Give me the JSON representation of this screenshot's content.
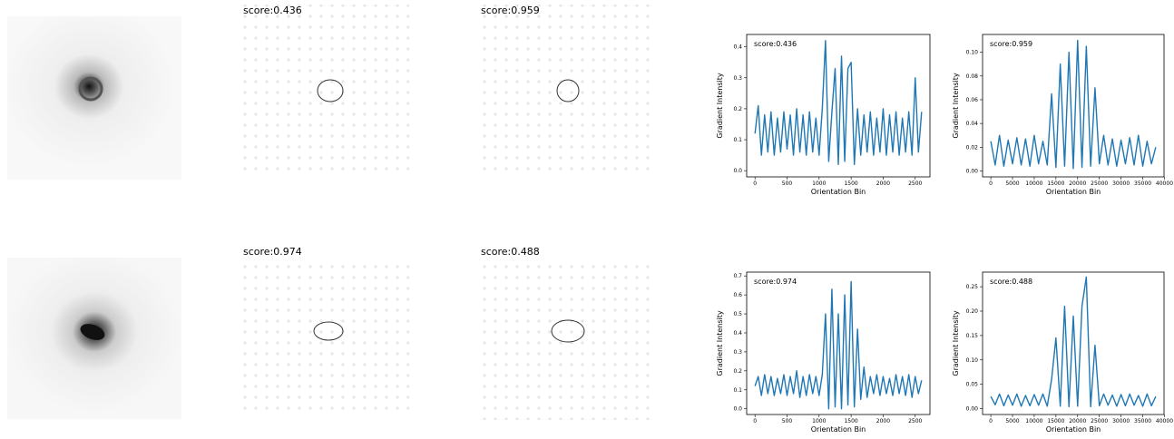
{
  "image_panels": [
    {
      "score_label": "score:0.436"
    },
    {
      "score_label": "score:0.959"
    },
    {
      "score_label": "score:0.974"
    },
    {
      "score_label": "score:0.488"
    }
  ],
  "chart_data": [
    {
      "type": "line",
      "annotation": "score:0.436",
      "xlabel": "Orientation Bin",
      "ylabel": "Gradient Intensity",
      "xlim": [
        -130,
        2730
      ],
      "ylim": [
        -0.02,
        0.44
      ],
      "xticks": [
        0,
        500,
        1000,
        1500,
        2000,
        2500
      ],
      "yticks": [
        {
          "value": 0,
          "label": "0.0"
        },
        0.1,
        0.2,
        0.3,
        0.4
      ],
      "x": [
        0,
        50,
        100,
        150,
        200,
        250,
        300,
        350,
        400,
        450,
        500,
        550,
        600,
        650,
        700,
        750,
        800,
        850,
        900,
        950,
        1000,
        1050,
        1100,
        1150,
        1200,
        1250,
        1300,
        1350,
        1400,
        1450,
        1500,
        1550,
        1600,
        1650,
        1700,
        1750,
        1800,
        1850,
        1900,
        1950,
        2000,
        2050,
        2100,
        2150,
        2200,
        2250,
        2300,
        2350,
        2400,
        2450,
        2500,
        2550,
        2600
      ],
      "series": [
        {
          "color": "#1f77b4",
          "values": [
            0.12,
            0.21,
            0.05,
            0.18,
            0.06,
            0.19,
            0.05,
            0.17,
            0.06,
            0.19,
            0.07,
            0.18,
            0.05,
            0.2,
            0.06,
            0.18,
            0.05,
            0.19,
            0.06,
            0.17,
            0.05,
            0.2,
            0.42,
            0.03,
            0.19,
            0.33,
            0.02,
            0.37,
            0.03,
            0.33,
            0.35,
            0.02,
            0.2,
            0.05,
            0.18,
            0.06,
            0.19,
            0.05,
            0.17,
            0.06,
            0.2,
            0.05,
            0.18,
            0.06,
            0.19,
            0.05,
            0.17,
            0.06,
            0.19,
            0.05,
            0.3,
            0.06,
            0.19
          ]
        }
      ]
    },
    {
      "type": "line",
      "annotation": "score:0.959",
      "xlabel": "Orientation Bin",
      "ylabel": "Gradient Intensity",
      "xlim": [
        -1900,
        39900
      ],
      "ylim": [
        -0.005,
        0.115
      ],
      "xticks": [
        0,
        5000,
        10000,
        15000,
        20000,
        25000,
        30000,
        35000,
        40000
      ],
      "yticks": [
        {
          "value": 0,
          "label": "0.00"
        },
        0.02,
        0.04,
        0.06,
        0.08,
        {
          "value": 0.1,
          "label": "0.10"
        }
      ],
      "x": [
        0,
        1000,
        2000,
        3000,
        4000,
        5000,
        6000,
        7000,
        8000,
        9000,
        10000,
        11000,
        12000,
        13000,
        14000,
        15000,
        16000,
        17000,
        18000,
        19000,
        20000,
        21000,
        22000,
        23000,
        24000,
        25000,
        26000,
        27000,
        28000,
        29000,
        30000,
        31000,
        32000,
        33000,
        34000,
        35000,
        36000,
        37000,
        38000
      ],
      "series": [
        {
          "color": "#1f77b4",
          "values": [
            0.025,
            0.005,
            0.03,
            0.004,
            0.026,
            0.006,
            0.028,
            0.005,
            0.027,
            0.004,
            0.03,
            0.006,
            0.025,
            0.005,
            0.065,
            0.003,
            0.09,
            0.004,
            0.1,
            0.002,
            0.11,
            0.003,
            0.105,
            0.004,
            0.07,
            0.006,
            0.03,
            0.005,
            0.027,
            0.004,
            0.026,
            0.006,
            0.028,
            0.005,
            0.03,
            0.004,
            0.025,
            0.006,
            0.02
          ]
        }
      ]
    },
    {
      "type": "line",
      "annotation": "score:0.974",
      "xlabel": "Orientation Bin",
      "ylabel": "Gradient Intensity",
      "xlim": [
        -130,
        2730
      ],
      "ylim": [
        -0.03,
        0.72
      ],
      "xticks": [
        0,
        500,
        1000,
        1500,
        2000,
        2500
      ],
      "yticks": [
        {
          "value": 0,
          "label": "0.0"
        },
        0.1,
        0.2,
        0.3,
        0.4,
        0.5,
        0.6,
        0.7
      ],
      "x": [
        0,
        50,
        100,
        150,
        200,
        250,
        300,
        350,
        400,
        450,
        500,
        550,
        600,
        650,
        700,
        750,
        800,
        850,
        900,
        950,
        1000,
        1050,
        1100,
        1150,
        1200,
        1250,
        1300,
        1350,
        1400,
        1450,
        1500,
        1550,
        1600,
        1650,
        1700,
        1750,
        1800,
        1850,
        1900,
        1950,
        2000,
        2050,
        2100,
        2150,
        2200,
        2250,
        2300,
        2350,
        2400,
        2450,
        2500,
        2550,
        2600
      ],
      "series": [
        {
          "color": "#1f77b4",
          "values": [
            0.12,
            0.17,
            0.07,
            0.18,
            0.08,
            0.17,
            0.07,
            0.16,
            0.08,
            0.18,
            0.07,
            0.17,
            0.08,
            0.2,
            0.06,
            0.17,
            0.07,
            0.18,
            0.08,
            0.17,
            0.07,
            0.18,
            0.5,
            0.0,
            0.63,
            0.01,
            0.5,
            0.0,
            0.6,
            0.02,
            0.67,
            0.01,
            0.42,
            0.05,
            0.22,
            0.06,
            0.17,
            0.08,
            0.18,
            0.07,
            0.17,
            0.08,
            0.16,
            0.07,
            0.18,
            0.08,
            0.17,
            0.07,
            0.18,
            0.06,
            0.17,
            0.08,
            0.15
          ]
        }
      ]
    },
    {
      "type": "line",
      "annotation": "score:0.488",
      "xlabel": "Orientation Bin",
      "ylabel": "Gradient Intensity",
      "xlim": [
        -1900,
        39900
      ],
      "ylim": [
        -0.012,
        0.28
      ],
      "xticks": [
        0,
        5000,
        10000,
        15000,
        20000,
        25000,
        30000,
        35000,
        40000
      ],
      "yticks": [
        {
          "value": 0,
          "label": "0.00"
        },
        0.05,
        {
          "value": 0.1,
          "label": "0.10"
        },
        0.15,
        {
          "value": 0.2,
          "label": "0.20"
        },
        0.25
      ],
      "x": [
        0,
        1000,
        2000,
        3000,
        4000,
        5000,
        6000,
        7000,
        8000,
        9000,
        10000,
        11000,
        12000,
        13000,
        14000,
        15000,
        16000,
        17000,
        18000,
        19000,
        20000,
        21000,
        22000,
        23000,
        24000,
        25000,
        26000,
        27000,
        28000,
        29000,
        30000,
        31000,
        32000,
        33000,
        34000,
        35000,
        36000,
        37000,
        38000
      ],
      "series": [
        {
          "color": "#1f77b4",
          "values": [
            0.025,
            0.008,
            0.03,
            0.006,
            0.028,
            0.007,
            0.03,
            0.005,
            0.027,
            0.006,
            0.029,
            0.007,
            0.03,
            0.005,
            0.06,
            0.145,
            0.005,
            0.21,
            0.004,
            0.19,
            0.005,
            0.21,
            0.27,
            0.004,
            0.13,
            0.006,
            0.03,
            0.007,
            0.028,
            0.005,
            0.029,
            0.006,
            0.03,
            0.007,
            0.027,
            0.005,
            0.03,
            0.006,
            0.025
          ]
        }
      ]
    }
  ]
}
